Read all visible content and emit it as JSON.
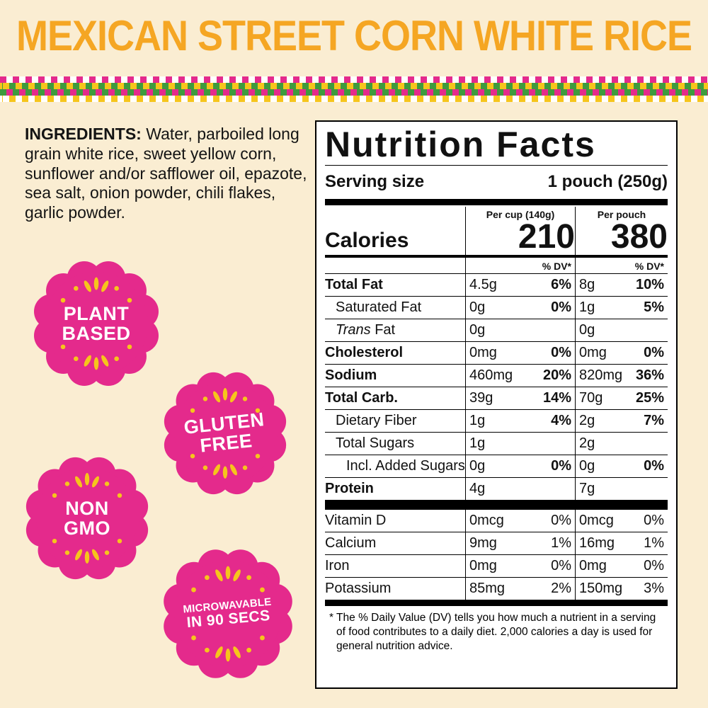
{
  "title": "MEXICAN STREET CORN WHITE RICE",
  "colors": {
    "background": "#FAEDD2",
    "title_yellow": "#F5A623",
    "badge_pink": "#E42A8C",
    "accent_yellow": "#F6C51C",
    "checker_green": "#3E9B3E"
  },
  "ingredients": {
    "label": "INGREDIENTS:",
    "text": "Water, parboiled long grain white rice, sweet yellow corn, sunflower and/or safflower oil, epazote, sea salt, onion powder, chili flakes, garlic powder."
  },
  "badges": [
    {
      "id": "plant-based",
      "lines": [
        "PLANT",
        "BASED"
      ]
    },
    {
      "id": "gluten-free",
      "lines": [
        "GLUTEN",
        "FREE"
      ]
    },
    {
      "id": "non-gmo",
      "lines": [
        "NON",
        "GMO"
      ]
    },
    {
      "id": "microwavable",
      "lines": [
        "MICROWAVABLE",
        "IN 90 SECS"
      ]
    }
  ],
  "nutrition": {
    "title": "Nutrition Facts",
    "serving_size_label": "Serving size",
    "serving_size_value": "1 pouch (250g)",
    "col_headers": {
      "per_cup": "Per cup (140g)",
      "per_pouch": "Per pouch"
    },
    "calories_label": "Calories",
    "calories_per_cup": "210",
    "calories_per_pouch": "380",
    "dv_header": "% DV*",
    "rows": [
      {
        "label": "Total Fat",
        "style": "bold",
        "cup": "4.5g",
        "cup_dv": "6%",
        "pouch": "8g",
        "pouch_dv": "10%"
      },
      {
        "label": "Saturated Fat",
        "style": "indent",
        "cup": "0g",
        "cup_dv": "0%",
        "pouch": "1g",
        "pouch_dv": "5%"
      },
      {
        "label": "Trans Fat",
        "style": "indent-italic",
        "cup": "0g",
        "cup_dv": "",
        "pouch": "0g",
        "pouch_dv": ""
      },
      {
        "label": "Cholesterol",
        "style": "bold",
        "cup": "0mg",
        "cup_dv": "0%",
        "pouch": "0mg",
        "pouch_dv": "0%"
      },
      {
        "label": "Sodium",
        "style": "bold",
        "cup": "460mg",
        "cup_dv": "20%",
        "pouch": "820mg",
        "pouch_dv": "36%"
      },
      {
        "label": "Total Carb.",
        "style": "bold",
        "cup": "39g",
        "cup_dv": "14%",
        "pouch": "70g",
        "pouch_dv": "25%"
      },
      {
        "label": "Dietary Fiber",
        "style": "indent",
        "cup": "1g",
        "cup_dv": "4%",
        "pouch": "2g",
        "pouch_dv": "7%"
      },
      {
        "label": "Total Sugars",
        "style": "indent",
        "cup": "1g",
        "cup_dv": "",
        "pouch": "2g",
        "pouch_dv": ""
      },
      {
        "label": "Incl. Added Sugars",
        "style": "indent2",
        "cup": "0g",
        "cup_dv": "0%",
        "pouch": "0g",
        "pouch_dv": "0%"
      },
      {
        "label": "Protein",
        "style": "bold",
        "cup": "4g",
        "cup_dv": "",
        "pouch": "7g",
        "pouch_dv": "",
        "after": "thick"
      },
      {
        "label": "Vitamin D",
        "style": "plain",
        "cup": "0mcg",
        "cup_dv": "0%",
        "pouch": "0mcg",
        "pouch_dv": "0%"
      },
      {
        "label": "Calcium",
        "style": "plain",
        "cup": "9mg",
        "cup_dv": "1%",
        "pouch": "16mg",
        "pouch_dv": "1%"
      },
      {
        "label": "Iron",
        "style": "plain",
        "cup": "0mg",
        "cup_dv": "0%",
        "pouch": "0mg",
        "pouch_dv": "0%"
      },
      {
        "label": "Potassium",
        "style": "plain",
        "cup": "85mg",
        "cup_dv": "2%",
        "pouch": "150mg",
        "pouch_dv": "3%"
      }
    ],
    "footnote": "* The % Daily Value (DV) tells you how much a nutrient in a serving of food contributes to a daily diet. 2,000 calories a day is used for general nutrition advice."
  }
}
